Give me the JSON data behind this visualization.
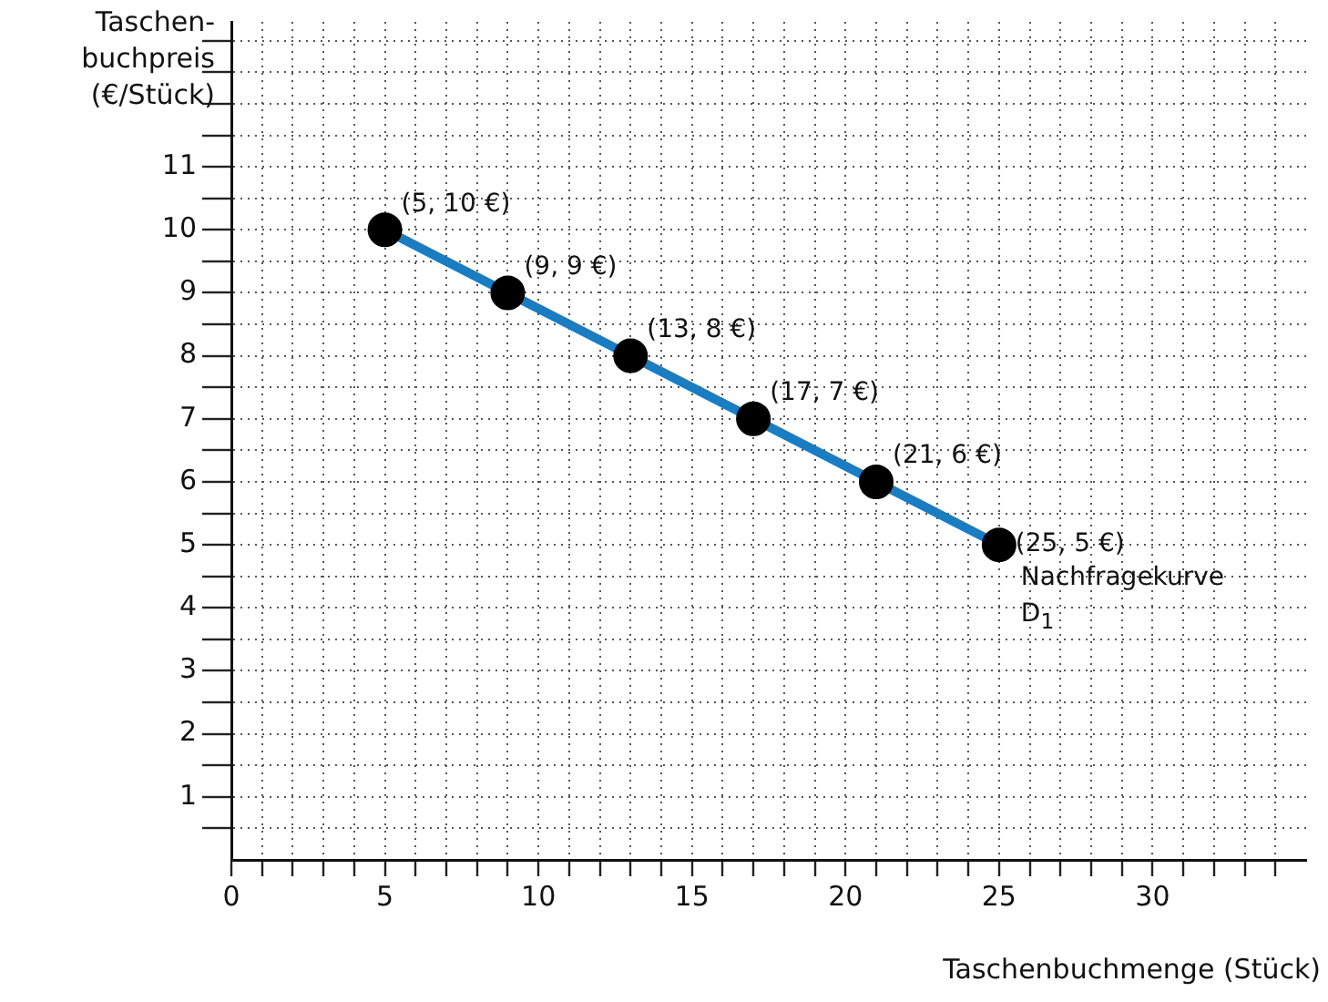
{
  "chart_data": {
    "type": "line",
    "xlabel": "Taschenbuchmenge (Stück)",
    "ylabel": "Taschen-\nbuchpreis\n(€/Stück)",
    "x": [
      5,
      9,
      13,
      17,
      21,
      25
    ],
    "series": [
      {
        "name": "Nachfragekurve D$_{1}$",
        "color": "#1a7cc1",
        "colors": [
          "#000000",
          "#000000",
          "#000000",
          "#000000",
          "#000000",
          "#000000"
        ],
        "values": [
          10,
          9,
          8,
          7,
          6,
          5
        ],
        "value_labels": [
          "(5, 10 €)",
          "(9, 9 €)",
          "(13, 8 €)",
          "(17, 7 €)",
          "(21, 6 €)",
          "(25, 5 €)"
        ]
      }
    ],
    "xlim": [
      0,
      35
    ],
    "ylim": [
      0,
      13.3
    ],
    "xticks": [
      0,
      {
        "value": 1,
        "label": null
      },
      {
        "value": 2,
        "label": null
      },
      {
        "value": 3,
        "label": null
      },
      {
        "value": 4,
        "label": null
      },
      5,
      {
        "value": 6,
        "label": null
      },
      {
        "value": 7,
        "label": null
      },
      {
        "value": 8,
        "label": null
      },
      {
        "value": 9,
        "label": null
      },
      10,
      {
        "value": 11,
        "label": null
      },
      {
        "value": 12,
        "label": null
      },
      {
        "value": 13,
        "label": null
      },
      {
        "value": 14,
        "label": null
      },
      15,
      {
        "value": 16,
        "label": null
      },
      {
        "value": 17,
        "label": null
      },
      {
        "value": 18,
        "label": null
      },
      {
        "value": 19,
        "label": null
      },
      20,
      {
        "value": 21,
        "label": null
      },
      {
        "value": 22,
        "label": null
      },
      {
        "value": 23,
        "label": null
      },
      {
        "value": 24,
        "label": null
      },
      25,
      {
        "value": 26,
        "label": null
      },
      {
        "value": 27,
        "label": null
      },
      {
        "value": 28,
        "label": null
      },
      {
        "value": 29,
        "label": null
      },
      30,
      {
        "value": 31,
        "label": null
      },
      {
        "value": 32,
        "label": null
      },
      {
        "value": 33,
        "label": null
      },
      {
        "value": 34,
        "label": null
      }
    ],
    "yticks": [
      {
        "value": 0.5,
        "label": null
      },
      1,
      {
        "value": 1.5,
        "label": null
      },
      2,
      {
        "value": 2.5,
        "label": null
      },
      3,
      {
        "value": 3.5,
        "label": null
      },
      4,
      {
        "value": 4.5,
        "label": null
      },
      5,
      {
        "value": 5.5,
        "label": null
      },
      6,
      {
        "value": 6.5,
        "label": null
      },
      7,
      {
        "value": 7.5,
        "label": null
      },
      8,
      {
        "value": 8.5,
        "label": null
      },
      9,
      {
        "value": 9.5,
        "label": null
      },
      10,
      {
        "value": 10.5,
        "label": null
      },
      11,
      {
        "value": 11.5,
        "label": null
      },
      {
        "value": 12,
        "label": null
      },
      {
        "value": 12.5,
        "label": null
      },
      {
        "value": 13,
        "label": null
      }
    ],
    "grid": true,
    "legend": false,
    "marker": "circle",
    "line_style": "solid"
  }
}
